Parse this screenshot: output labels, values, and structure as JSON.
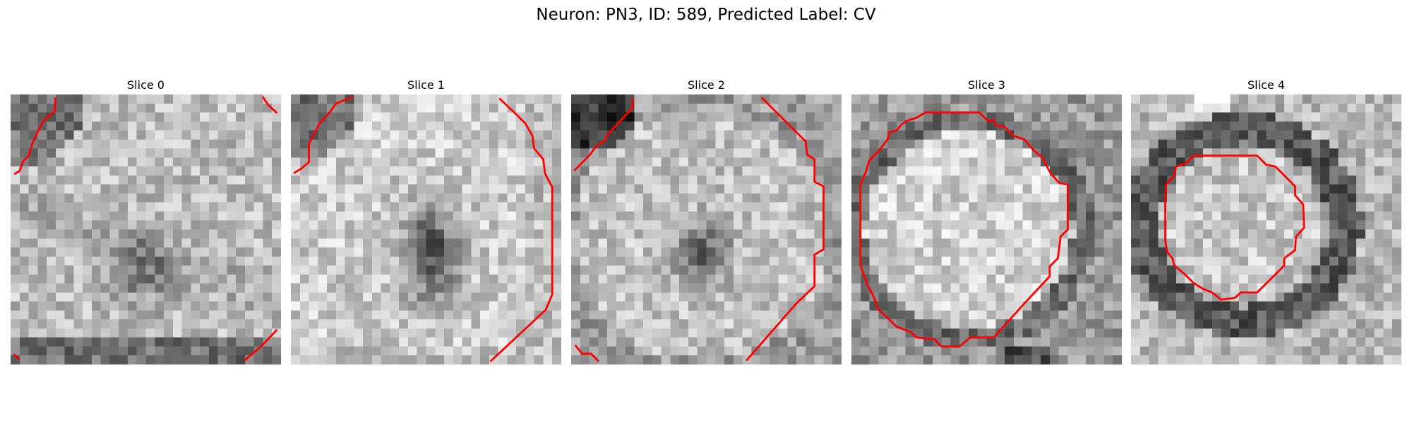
{
  "figure": {
    "title": "Neuron: PN3, ID: 589, Predicted Label: CV"
  },
  "slices": [
    {
      "title": "Slice 0",
      "pattern": "diagonal-band"
    },
    {
      "title": "Slice 1",
      "pattern": "dark-core"
    },
    {
      "title": "Slice 2",
      "pattern": "soft-core"
    },
    {
      "title": "Slice 3",
      "pattern": "bright-disk"
    },
    {
      "title": "Slice 4",
      "pattern": "ring"
    }
  ],
  "colors": {
    "contour": "#ff0000",
    "background": "#ffffff"
  }
}
